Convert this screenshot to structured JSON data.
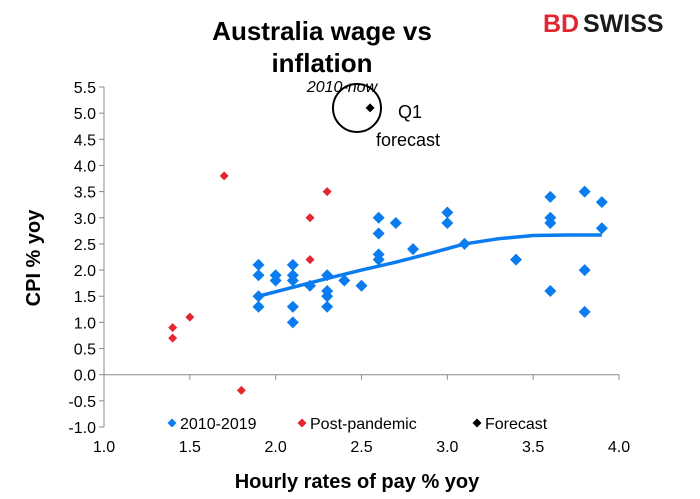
{
  "logo": {
    "part1": "BD",
    "part2": "SWISS",
    "colors": [
      "#e3262f",
      "#1a1a1a"
    ]
  },
  "chart_data": {
    "type": "scatter",
    "title_line1": "Australia wage vs",
    "title_line2": "inflation",
    "subtitle": "2010-now",
    "xlabel": "Hourly rates of pay % yoy",
    "ylabel": "CPI % yoy",
    "xlim": [
      1.0,
      4.0
    ],
    "ylim": [
      -1.0,
      5.5
    ],
    "xticks": [
      "1.0",
      "1.5",
      "2.0",
      "2.5",
      "3.0",
      "3.5",
      "4.0"
    ],
    "yticks": [
      "-1.0",
      "-0.5",
      "0.0",
      "0.5",
      "1.0",
      "1.5",
      "2.0",
      "2.5",
      "3.0",
      "3.5",
      "4.0",
      "4.5",
      "5.0",
      "5.5"
    ],
    "grid": false,
    "legend_position": "bottom",
    "annotation": "Q1\nforecast",
    "annotation_line1": "Q1",
    "annotation_line2": "forecast",
    "series": [
      {
        "name": "2010-2019",
        "color": "#0a7cf0",
        "points": [
          [
            1.9,
            2.1
          ],
          [
            1.9,
            1.9
          ],
          [
            1.9,
            1.5
          ],
          [
            1.9,
            1.3
          ],
          [
            2.0,
            1.9
          ],
          [
            2.0,
            1.8
          ],
          [
            2.1,
            2.1
          ],
          [
            2.1,
            1.9
          ],
          [
            2.1,
            1.8
          ],
          [
            2.1,
            1.3
          ],
          [
            2.1,
            1.0
          ],
          [
            2.2,
            1.7
          ],
          [
            2.3,
            1.9
          ],
          [
            2.3,
            1.6
          ],
          [
            2.3,
            1.5
          ],
          [
            2.3,
            1.3
          ],
          [
            2.4,
            1.8
          ],
          [
            2.5,
            1.7
          ],
          [
            2.6,
            3.0
          ],
          [
            2.6,
            2.7
          ],
          [
            2.6,
            2.3
          ],
          [
            2.6,
            2.2
          ],
          [
            2.7,
            2.9
          ],
          [
            2.8,
            2.4
          ],
          [
            3.0,
            3.1
          ],
          [
            3.0,
            2.9
          ],
          [
            3.1,
            2.5
          ],
          [
            3.4,
            2.2
          ],
          [
            3.6,
            3.4
          ],
          [
            3.6,
            3.0
          ],
          [
            3.6,
            2.9
          ],
          [
            3.6,
            1.6
          ],
          [
            3.8,
            3.5
          ],
          [
            3.8,
            2.0
          ],
          [
            3.8,
            1.2
          ],
          [
            3.9,
            3.3
          ],
          [
            3.9,
            2.8
          ]
        ]
      },
      {
        "name": "Post-pandemic",
        "color": "#e3262f",
        "points": [
          [
            1.4,
            0.9
          ],
          [
            1.4,
            0.7
          ],
          [
            1.5,
            1.1
          ],
          [
            1.7,
            3.8
          ],
          [
            1.8,
            -0.3
          ],
          [
            2.2,
            3.0
          ],
          [
            2.2,
            2.2
          ],
          [
            2.3,
            3.5
          ]
        ]
      },
      {
        "name": "Forecast",
        "color": "#000000",
        "points": [
          [
            2.55,
            5.1
          ]
        ]
      }
    ],
    "trendline": {
      "color": "#0a7cf0",
      "points": [
        [
          1.9,
          1.5
        ],
        [
          2.1,
          1.67
        ],
        [
          2.3,
          1.84
        ],
        [
          2.5,
          2.0
        ],
        [
          2.7,
          2.15
        ],
        [
          2.9,
          2.32
        ],
        [
          3.1,
          2.5
        ],
        [
          3.3,
          2.6
        ],
        [
          3.5,
          2.66
        ],
        [
          3.7,
          2.67
        ],
        [
          3.9,
          2.67
        ]
      ]
    }
  }
}
